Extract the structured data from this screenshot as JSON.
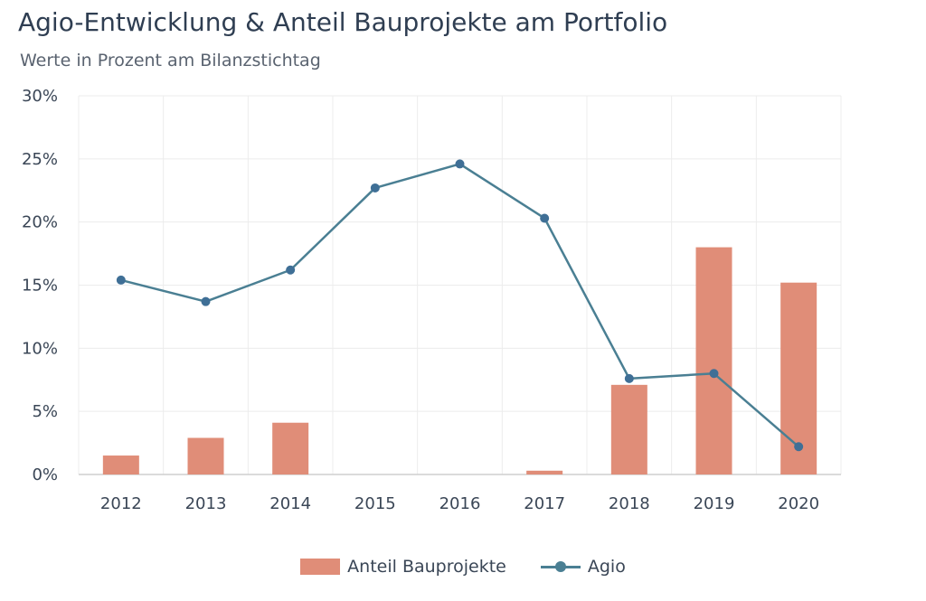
{
  "chart_data": {
    "type": "bar",
    "title": "Agio-Entwicklung & Anteil Bauprojekte am Portfolio",
    "subtitle": "Werte in Prozent am Bilanzstichtag",
    "categories": [
      "2012",
      "2013",
      "2014",
      "2015",
      "2016",
      "2017",
      "2018",
      "2019",
      "2020"
    ],
    "series": [
      {
        "name": "Anteil Bauprojekte",
        "type": "bar",
        "color": "#e08d78",
        "values": [
          1.5,
          2.9,
          4.1,
          0,
          0,
          0.3,
          7.1,
          18.0,
          15.2
        ]
      },
      {
        "name": "Agio",
        "type": "line",
        "color": "#4a7f93",
        "marker_color": "#3f6f96",
        "values": [
          15.4,
          13.7,
          16.2,
          22.7,
          24.6,
          20.3,
          7.6,
          8.0,
          2.2
        ]
      }
    ],
    "ylim": [
      0,
      30
    ],
    "yticks": [
      0,
      5,
      10,
      15,
      20,
      25,
      30
    ],
    "ytick_labels": [
      "0%",
      "5%",
      "10%",
      "15%",
      "20%",
      "25%",
      "30%"
    ],
    "grid": true,
    "legend_position": "bottom"
  }
}
